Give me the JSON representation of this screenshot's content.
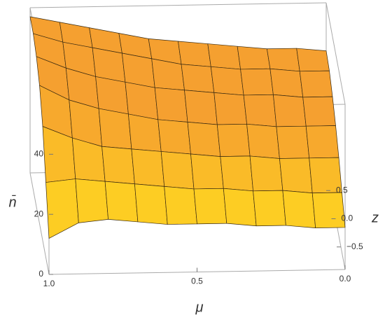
{
  "chart_data": {
    "type": "surface",
    "xlabel": "μ",
    "ylabel": "z",
    "zlabel": "n̄",
    "x": [
      1.0,
      0.9,
      0.8,
      0.7,
      0.6,
      0.5,
      0.4,
      0.3,
      0.2,
      0.1,
      0.0
    ],
    "y": [
      -0.9,
      -0.6,
      -0.3,
      0,
      0.3,
      0.6,
      0.9
    ],
    "values": [
      [
        12,
        25,
        38,
        46,
        50,
        52,
        52
      ],
      [
        17,
        26,
        34,
        41,
        46,
        49,
        50
      ],
      [
        18,
        25,
        31,
        38,
        43,
        47,
        48
      ],
      [
        17,
        24,
        30,
        36,
        41,
        45,
        46
      ],
      [
        16,
        23,
        29,
        34,
        39,
        43,
        44
      ],
      [
        16,
        22,
        28,
        33,
        38,
        41,
        43
      ],
      [
        16,
        22,
        27,
        32,
        37,
        40,
        42
      ],
      [
        15,
        21,
        27,
        32,
        36,
        39,
        41
      ],
      [
        15,
        21,
        26,
        31,
        36,
        39,
        40
      ],
      [
        14,
        20,
        26,
        31,
        35,
        38,
        40
      ],
      [
        14,
        20,
        26,
        31,
        35,
        38,
        39
      ]
    ],
    "xlim": [
      1.0,
      0.0
    ],
    "ylim": [
      -0.9,
      0.9
    ],
    "zlim": [
      0,
      55
    ],
    "xticks": [
      {
        "value": 1.0,
        "label": "1.0"
      },
      0.5,
      {
        "value": 0.0,
        "label": "0.0"
      }
    ],
    "yticks": [
      {
        "value": -0.5,
        "label": "−0.5"
      },
      {
        "value": 0,
        "label": "0.0"
      },
      0.5
    ],
    "zticks": [
      0,
      20,
      40
    ],
    "color": "#f5a030",
    "highlight_color": "#ffd820"
  }
}
